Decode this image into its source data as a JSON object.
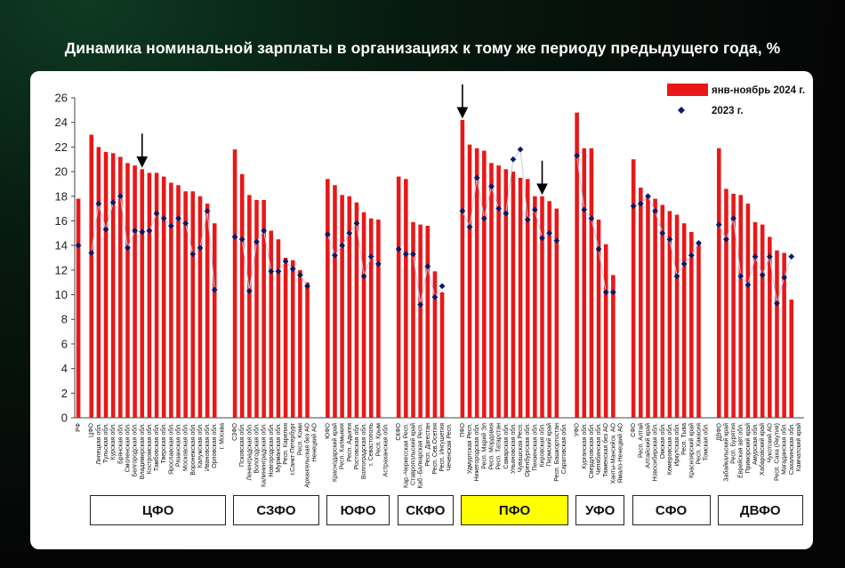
{
  "title": "Динамика номинальной зарплаты в организациях к тому же периоду предыдущего года, %",
  "colors": {
    "bar": "#e81818",
    "marker": "#0a1a66",
    "highlight": "#ffff00"
  },
  "chart_data": {
    "type": "bar",
    "ylim": [
      0,
      26
    ],
    "yticks": [
      0,
      2,
      4,
      6,
      8,
      10,
      12,
      14,
      16,
      18,
      20,
      22,
      24,
      26
    ],
    "grid": false,
    "legend_position": "top-right",
    "series": [
      {
        "name": "янв-ноябрь 2024 г.",
        "kind": "bar"
      },
      {
        "name": "2023 г.",
        "kind": "marker"
      }
    ],
    "groups": [
      {
        "label": "",
        "items": [
          {
            "name": "РФ",
            "v2024": 17.8,
            "v2023": 14.0
          }
        ]
      },
      {
        "label": "ЦФО",
        "items": [
          {
            "name": "ЦФО",
            "v2024": 23.0,
            "v2023": 13.4
          },
          {
            "name": "Липецкая обл.",
            "v2024": 22.0,
            "v2023": 17.4
          },
          {
            "name": "Тульская обл.",
            "v2024": 21.6,
            "v2023": 15.3
          },
          {
            "name": "Курская обл.",
            "v2024": 21.5,
            "v2023": 17.5
          },
          {
            "name": "Брянская обл.",
            "v2024": 21.2,
            "v2023": 18.0
          },
          {
            "name": "Смоленская обл.",
            "v2024": 20.7,
            "v2023": 13.8
          },
          {
            "name": "Белгородская обл.",
            "v2024": 20.5,
            "v2023": 15.2
          },
          {
            "name": "Владимирская обл.",
            "v2024": 20.2,
            "v2023": 15.1
          },
          {
            "name": "Костромская обл.",
            "v2024": 19.9,
            "v2023": 15.2
          },
          {
            "name": "Тамбовская обл.",
            "v2024": 19.9,
            "v2023": 16.6
          },
          {
            "name": "Тверская обл.",
            "v2024": 19.6,
            "v2023": 16.2
          },
          {
            "name": "Ярославская обл.",
            "v2024": 19.1,
            "v2023": 15.6
          },
          {
            "name": "Рязанская обл.",
            "v2024": 18.9,
            "v2023": 16.2
          },
          {
            "name": "Московская обл.",
            "v2024": 18.4,
            "v2023": 15.8
          },
          {
            "name": "Воронежская обл.",
            "v2024": 18.4,
            "v2023": 13.3
          },
          {
            "name": "Калужская обл.",
            "v2024": 18.0,
            "v2023": 13.8
          },
          {
            "name": "Ивановская обл.",
            "v2024": 17.4,
            "v2023": 16.8
          },
          {
            "name": "Орловская обл.",
            "v2024": 15.8,
            "v2023": 10.4
          },
          {
            "name": "г. Москва",
            "v2024": null,
            "v2023": null
          }
        ]
      },
      {
        "label": "СЗФО",
        "items": [
          {
            "name": "СЗФО",
            "v2024": 21.8,
            "v2023": 14.7
          },
          {
            "name": "Псковская обл.",
            "v2024": 19.8,
            "v2023": 14.5
          },
          {
            "name": "Ленинградская обл.",
            "v2024": 18.1,
            "v2023": 10.3
          },
          {
            "name": "Вологодская обл.",
            "v2024": 17.7,
            "v2023": 14.3
          },
          {
            "name": "Калининградская обл.",
            "v2024": 17.7,
            "v2023": 15.2
          },
          {
            "name": "Новгородская обл.",
            "v2024": 15.2,
            "v2023": 11.9
          },
          {
            "name": "Мурманская обл.",
            "v2024": 14.5,
            "v2023": 11.9
          },
          {
            "name": "Респ. Карелия",
            "v2024": 13.0,
            "v2023": 12.7
          },
          {
            "name": "г.Санкт-Петербург",
            "v2024": 12.8,
            "v2023": 12.1
          },
          {
            "name": "Респ. Коми",
            "v2024": 12.0,
            "v2023": 11.6
          },
          {
            "name": "Архангельская без АО",
            "v2024": 11.0,
            "v2023": 10.7
          },
          {
            "name": "Ненецкий АО",
            "v2024": null,
            "v2023": null
          }
        ]
      },
      {
        "label": "ЮФО",
        "items": [
          {
            "name": "ЮФО",
            "v2024": 19.4,
            "v2023": 14.9
          },
          {
            "name": "Краснодарский край",
            "v2024": 18.9,
            "v2023": 13.2
          },
          {
            "name": "Респ. Калмыкия",
            "v2024": 18.1,
            "v2023": 14.0
          },
          {
            "name": "Респ. Адыгея",
            "v2024": 18.0,
            "v2023": 15.0
          },
          {
            "name": "Ростовская обл.",
            "v2024": 17.5,
            "v2023": 15.8
          },
          {
            "name": "Волгоградская обл.",
            "v2024": 16.7,
            "v2023": 11.5
          },
          {
            "name": "г. Севастополь",
            "v2024": 16.2,
            "v2023": 13.1
          },
          {
            "name": "Респ. Крым",
            "v2024": 16.1,
            "v2023": 12.5
          },
          {
            "name": "Астраханская обл.",
            "v2024": null,
            "v2023": null
          }
        ]
      },
      {
        "label": "СКФО",
        "items": [
          {
            "name": "СКФО",
            "v2024": 19.6,
            "v2023": 13.7
          },
          {
            "name": "Кар.-Черкесская Респ.",
            "v2024": 19.4,
            "v2023": 13.3
          },
          {
            "name": "Ставропольский край",
            "v2024": 15.9,
            "v2023": 13.3
          },
          {
            "name": "Каб.-Балкарская Респ.",
            "v2024": 15.7,
            "v2023": 9.2
          },
          {
            "name": "Респ. Дагестан",
            "v2024": 15.6,
            "v2023": 12.3
          },
          {
            "name": "Респ. Сев.Осетия",
            "v2024": 11.9,
            "v2023": 9.8
          },
          {
            "name": "Респ. Ингушетия",
            "v2024": 10.2,
            "v2023": 10.7
          },
          {
            "name": "Чеченская Респ.",
            "v2024": null,
            "v2023": null
          }
        ]
      },
      {
        "label": "ПФО",
        "items": [
          {
            "name": "ПФО",
            "v2024": 24.2,
            "v2023": 16.8
          },
          {
            "name": "Удмуртская Респ.",
            "v2024": 22.2,
            "v2023": 15.5
          },
          {
            "name": "Нижегородская обл.",
            "v2024": 21.9,
            "v2023": 19.5
          },
          {
            "name": "Респ. Марий Эл",
            "v2024": 21.7,
            "v2023": 16.2
          },
          {
            "name": "Респ. Мордовия",
            "v2024": 20.7,
            "v2023": 18.8
          },
          {
            "name": "Респ. Татарстан",
            "v2024": 20.5,
            "v2023": 17.0
          },
          {
            "name": "Самарская обл.",
            "v2024": 20.2,
            "v2023": 16.6
          },
          {
            "name": "Ульяновская обл.",
            "v2024": 20.0,
            "v2023": 21.0
          },
          {
            "name": "Чувашская Респ.",
            "v2024": 19.5,
            "v2023": 21.8
          },
          {
            "name": "Оренбургская обл.",
            "v2024": 19.4,
            "v2023": 16.1
          },
          {
            "name": "Пензенская обл.",
            "v2024": 18.0,
            "v2023": 16.9
          },
          {
            "name": "Кировская обл.",
            "v2024": 18.0,
            "v2023": 14.6
          },
          {
            "name": "Пермский край",
            "v2024": 17.6,
            "v2023": 15.0
          },
          {
            "name": "Респ. Башкортостан",
            "v2024": 17.0,
            "v2023": 14.4
          },
          {
            "name": "Саратовская обл.",
            "v2024": null,
            "v2023": null
          }
        ]
      },
      {
        "label": "УФО",
        "items": [
          {
            "name": "УФО",
            "v2024": 24.8,
            "v2023": 21.3
          },
          {
            "name": "Курганская обл.",
            "v2024": 21.9,
            "v2023": 16.9
          },
          {
            "name": "Свердловская обл.",
            "v2024": 21.9,
            "v2023": 16.2
          },
          {
            "name": "Челябинская обл.",
            "v2024": 16.1,
            "v2023": 13.7
          },
          {
            "name": "Тюменская без АО",
            "v2024": 14.1,
            "v2023": 10.2
          },
          {
            "name": "Ханты-Мансийск. АО",
            "v2024": 11.6,
            "v2023": 10.2
          },
          {
            "name": "Ямало-Ненецкий АО",
            "v2024": null,
            "v2023": null
          }
        ]
      },
      {
        "label": "СФО",
        "items": [
          {
            "name": "СФО",
            "v2024": 21.0,
            "v2023": 17.2
          },
          {
            "name": "Респ. Алтай",
            "v2024": 18.7,
            "v2023": 17.4
          },
          {
            "name": "Алтайский край",
            "v2024": 18.0,
            "v2023": 18.0
          },
          {
            "name": "Новосибирская обл.",
            "v2024": 17.8,
            "v2023": 16.8
          },
          {
            "name": "Омская обл.",
            "v2024": 17.3,
            "v2023": 15.0
          },
          {
            "name": "Кемеровская обл.",
            "v2024": 16.8,
            "v2023": 14.5
          },
          {
            "name": "Иркутская обл.",
            "v2024": 16.5,
            "v2023": 11.5
          },
          {
            "name": "Респ. Тыва",
            "v2024": 15.8,
            "v2023": 12.5
          },
          {
            "name": "Красноярский край",
            "v2024": 15.1,
            "v2023": 13.2
          },
          {
            "name": "Респ. Хакасия",
            "v2024": 14.3,
            "v2023": 14.2
          },
          {
            "name": "Томская обл.",
            "v2024": null,
            "v2023": null
          }
        ]
      },
      {
        "label": "ДВФО",
        "items": [
          {
            "name": "ДВФО",
            "v2024": 21.9,
            "v2023": 15.7
          },
          {
            "name": "Забайкальский край",
            "v2024": 18.6,
            "v2023": 14.5
          },
          {
            "name": "Респ. Бурятия",
            "v2024": 18.2,
            "v2023": 16.2
          },
          {
            "name": "Еврейская авт.обл.",
            "v2024": 18.1,
            "v2023": 11.5
          },
          {
            "name": "Приморский край",
            "v2024": 17.4,
            "v2023": 10.8
          },
          {
            "name": "Амурская обл.",
            "v2024": 15.9,
            "v2023": 13.1
          },
          {
            "name": "Хабаровский край",
            "v2024": 15.7,
            "v2023": 11.6
          },
          {
            "name": "Чукотский АО",
            "v2024": 14.7,
            "v2023": 13.1
          },
          {
            "name": "Респ. Саха (Якутия)",
            "v2024": 13.6,
            "v2023": 9.3
          },
          {
            "name": "Магаданская обл.",
            "v2024": 13.4,
            "v2023": 11.4
          },
          {
            "name": "Сахалинская обл.",
            "v2024": 9.6,
            "v2023": 13.1
          },
          {
            "name": "Камчатский край",
            "v2024": null,
            "v2023": null
          }
        ]
      }
    ],
    "highlighted_district": "ПФО",
    "arrows_at": [
      "Владимирская обл.",
      "ПФО",
      "Кировская обл."
    ]
  }
}
